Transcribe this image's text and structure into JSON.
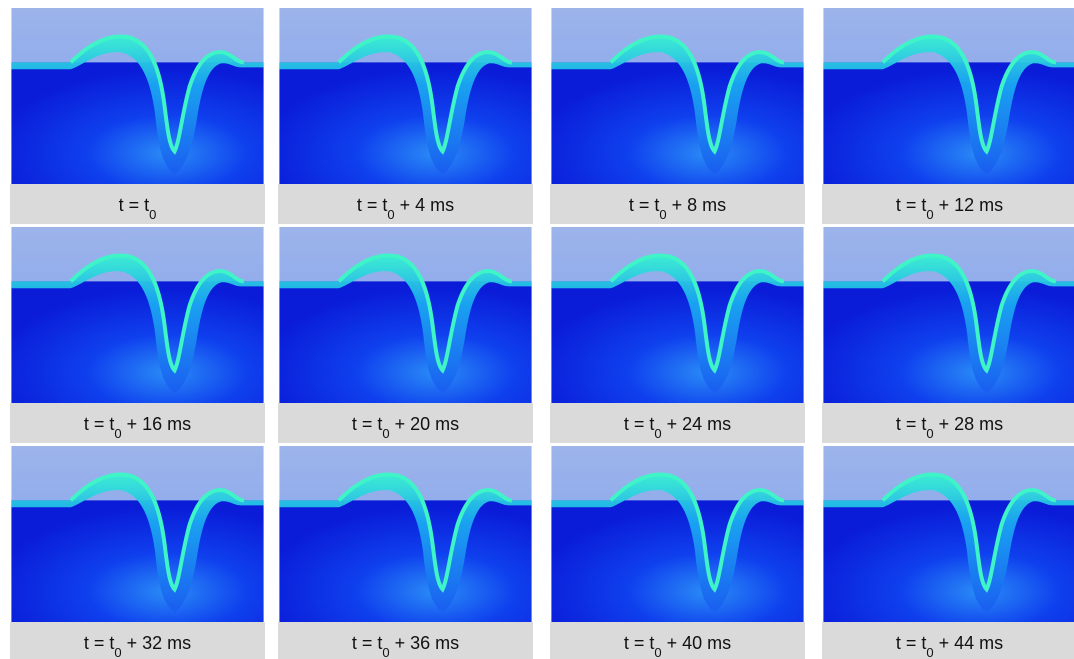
{
  "panels": [
    {
      "label": [
        "t = t",
        "0"
      ]
    },
    {
      "label": [
        "t = t",
        "0",
        " + 4 ms"
      ]
    },
    {
      "label": [
        "t = t",
        "0",
        " + 8 ms"
      ]
    },
    {
      "label": [
        "t = t",
        "0",
        " + 12 ms"
      ]
    },
    {
      "label": [
        "t = t",
        "0",
        " + 16 ms"
      ]
    },
    {
      "label": [
        "t = t",
        "0",
        " + 20 ms"
      ]
    },
    {
      "label": [
        "t = t",
        "0",
        " + 24 ms"
      ]
    },
    {
      "label": [
        "t = t",
        "0",
        " + 28 ms"
      ]
    },
    {
      "label": [
        "t = t",
        "0",
        " + 32 ms"
      ]
    },
    {
      "label": [
        "t = t",
        "0",
        " + 36 ms"
      ]
    },
    {
      "label": [
        "t = t",
        "0",
        " + 40 ms"
      ]
    },
    {
      "label": [
        "t = t",
        "0",
        " + 44 ms"
      ]
    }
  ]
}
